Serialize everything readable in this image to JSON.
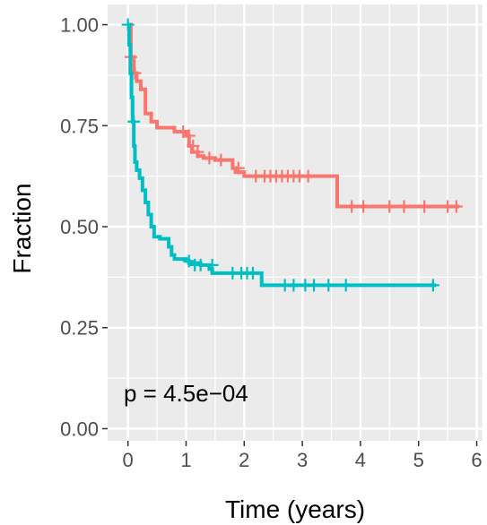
{
  "chart_data": {
    "type": "line",
    "subtype": "kaplan-meier",
    "title": "",
    "xlabel": "Time (years)",
    "ylabel": "Fraction",
    "xlim": [
      -0.35,
      6.1
    ],
    "ylim": [
      -0.03,
      1.05
    ],
    "x_ticks": [
      0,
      1,
      2,
      3,
      4,
      5,
      6
    ],
    "y_ticks": [
      0.0,
      0.25,
      0.5,
      0.75,
      1.0
    ],
    "x_tick_labels": [
      "0",
      "1",
      "2",
      "3",
      "4",
      "5",
      "6"
    ],
    "y_tick_labels": [
      "0.00",
      "0.25",
      "0.50",
      "0.75",
      "1.00"
    ],
    "grid": true,
    "background": "#ebebeb",
    "annotation": "p = 4.5e−04",
    "series": [
      {
        "color": "#f8766d",
        "steps": [
          [
            0,
            1.0
          ],
          [
            0.05,
            0.92
          ],
          [
            0.1,
            0.88
          ],
          [
            0.15,
            0.86
          ],
          [
            0.22,
            0.84
          ],
          [
            0.3,
            0.78
          ],
          [
            0.4,
            0.76
          ],
          [
            0.5,
            0.745
          ],
          [
            0.8,
            0.735
          ],
          [
            1.0,
            0.725
          ],
          [
            1.05,
            0.7
          ],
          [
            1.1,
            0.685
          ],
          [
            1.2,
            0.675
          ],
          [
            1.3,
            0.67
          ],
          [
            1.5,
            0.665
          ],
          [
            1.8,
            0.645
          ],
          [
            1.85,
            0.635
          ],
          [
            2.0,
            0.625
          ],
          [
            3.6,
            0.55
          ],
          [
            5.7,
            0.55
          ]
        ],
        "censored": [
          [
            0.05,
            0.92
          ],
          [
            0.12,
            0.88
          ],
          [
            0.95,
            0.735
          ],
          [
            1.05,
            0.725
          ],
          [
            1.12,
            0.7
          ],
          [
            1.2,
            0.685
          ],
          [
            1.4,
            0.67
          ],
          [
            1.6,
            0.665
          ],
          [
            1.9,
            0.645
          ],
          [
            2.2,
            0.625
          ],
          [
            2.35,
            0.625
          ],
          [
            2.45,
            0.625
          ],
          [
            2.55,
            0.625
          ],
          [
            2.65,
            0.625
          ],
          [
            2.75,
            0.625
          ],
          [
            2.85,
            0.625
          ],
          [
            2.95,
            0.625
          ],
          [
            3.1,
            0.625
          ],
          [
            3.85,
            0.55
          ],
          [
            4.05,
            0.55
          ],
          [
            4.5,
            0.55
          ],
          [
            4.75,
            0.55
          ],
          [
            5.1,
            0.55
          ],
          [
            5.5,
            0.55
          ],
          [
            5.65,
            0.55
          ]
        ]
      },
      {
        "color": "#00bfc4",
        "steps": [
          [
            0,
            1.0
          ],
          [
            0.02,
            0.95
          ],
          [
            0.04,
            0.88
          ],
          [
            0.06,
            0.82
          ],
          [
            0.08,
            0.76
          ],
          [
            0.1,
            0.7
          ],
          [
            0.12,
            0.66
          ],
          [
            0.15,
            0.64
          ],
          [
            0.2,
            0.62
          ],
          [
            0.25,
            0.59
          ],
          [
            0.3,
            0.56
          ],
          [
            0.35,
            0.53
          ],
          [
            0.4,
            0.5
          ],
          [
            0.45,
            0.475
          ],
          [
            0.55,
            0.47
          ],
          [
            0.7,
            0.45
          ],
          [
            0.75,
            0.43
          ],
          [
            0.8,
            0.42
          ],
          [
            1.0,
            0.415
          ],
          [
            1.05,
            0.41
          ],
          [
            1.25,
            0.405
          ],
          [
            1.4,
            0.395
          ],
          [
            1.45,
            0.385
          ],
          [
            2.3,
            0.355
          ],
          [
            5.3,
            0.355
          ]
        ],
        "censored": [
          [
            0.0,
            1.0
          ],
          [
            0.1,
            0.76
          ],
          [
            1.05,
            0.415
          ],
          [
            1.15,
            0.405
          ],
          [
            1.25,
            0.405
          ],
          [
            1.45,
            0.405
          ],
          [
            1.8,
            0.385
          ],
          [
            1.95,
            0.385
          ],
          [
            2.05,
            0.385
          ],
          [
            2.15,
            0.385
          ],
          [
            2.7,
            0.355
          ],
          [
            2.85,
            0.355
          ],
          [
            3.05,
            0.355
          ],
          [
            3.2,
            0.355
          ],
          [
            3.45,
            0.355
          ],
          [
            3.75,
            0.355
          ],
          [
            5.25,
            0.355
          ]
        ]
      }
    ]
  }
}
